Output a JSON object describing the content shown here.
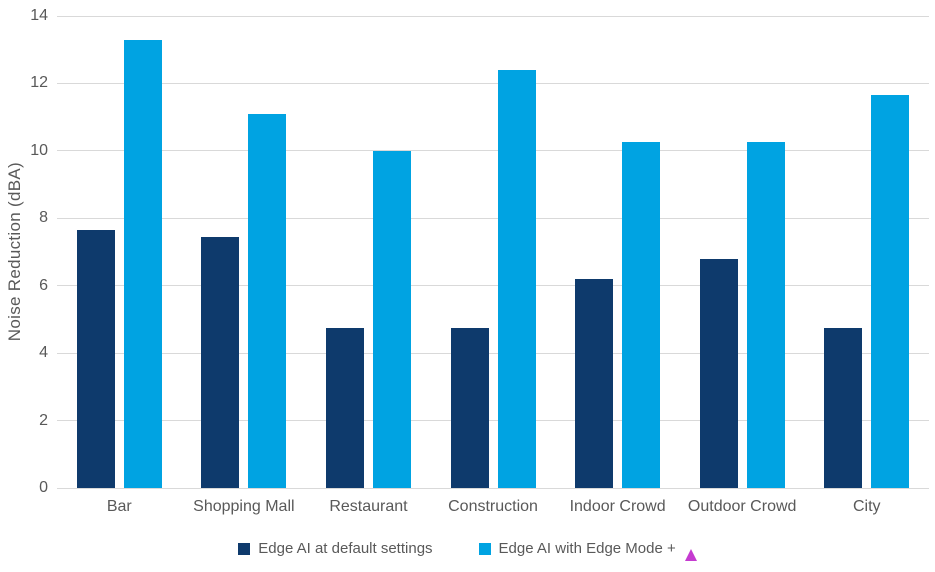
{
  "chart_data": {
    "type": "bar",
    "title": "",
    "xlabel": "",
    "ylabel": "Noise Reduction (dBA)",
    "ylim": [
      0,
      14
    ],
    "yticks": [
      0,
      2,
      4,
      6,
      8,
      10,
      12,
      14
    ],
    "grid": true,
    "legend_position": "bottom",
    "categories": [
      "Bar",
      "Shopping Mall",
      "Restaurant",
      "Construction",
      "Indoor Crowd",
      "Outdoor Crowd",
      "City"
    ],
    "series": [
      {
        "name": "Edge AI at default settings",
        "color": "#0e3a6c",
        "values": [
          7.65,
          7.45,
          4.75,
          4.75,
          6.2,
          6.8,
          4.75
        ]
      },
      {
        "name": "Edge AI with Edge Mode +",
        "color": "#00a3e2",
        "values": [
          13.3,
          11.1,
          10.0,
          12.4,
          10.25,
          10.25,
          11.65
        ]
      }
    ]
  },
  "legend": {
    "items": [
      {
        "label": "Edge AI at default settings",
        "color": "#0e3a6c"
      },
      {
        "label": "Edge AI with Edge Mode +",
        "color": "#00a3e2"
      }
    ]
  },
  "cursor": {
    "shape": "triangle-up",
    "color": "#c53bd0"
  },
  "colors": {
    "grid": "#d9d9d9",
    "axis_text": "#595959",
    "background": "#ffffff"
  }
}
